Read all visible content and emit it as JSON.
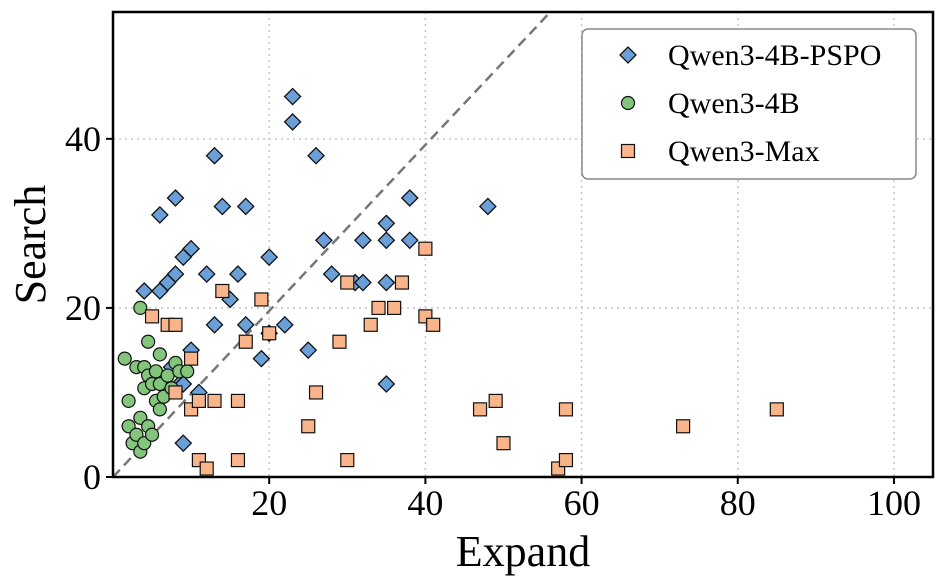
{
  "chart_data": {
    "type": "scatter",
    "xlabel": "Expand",
    "ylabel": "Search",
    "xlim": [
      0,
      105
    ],
    "ylim": [
      0,
      55
    ],
    "xticks": [
      20,
      40,
      60,
      80,
      100
    ],
    "yticks": [
      0,
      20,
      40
    ],
    "grid": true,
    "reference_line": {
      "style": "dashed",
      "from": [
        0,
        0
      ],
      "to": [
        56,
        55
      ]
    },
    "legend_position": "top-right",
    "series": [
      {
        "name": "Qwen3-4B-PSPO",
        "marker": "diamond",
        "color": "#6a9fd8",
        "points": [
          [
            4,
            22
          ],
          [
            6,
            22
          ],
          [
            6,
            31
          ],
          [
            7,
            23
          ],
          [
            7.5,
            13
          ],
          [
            8,
            24
          ],
          [
            8,
            33
          ],
          [
            8.5,
            11
          ],
          [
            9,
            26
          ],
          [
            9,
            11
          ],
          [
            9,
            4
          ],
          [
            10,
            27
          ],
          [
            10,
            15
          ],
          [
            11,
            10
          ],
          [
            12,
            24
          ],
          [
            13,
            38
          ],
          [
            13,
            18
          ],
          [
            14,
            32
          ],
          [
            15,
            21
          ],
          [
            16,
            24
          ],
          [
            17,
            32
          ],
          [
            17,
            18
          ],
          [
            19,
            14
          ],
          [
            20,
            26
          ],
          [
            20,
            17
          ],
          [
            22,
            18
          ],
          [
            23,
            45
          ],
          [
            23,
            42
          ],
          [
            25,
            15
          ],
          [
            26,
            38
          ],
          [
            27,
            28
          ],
          [
            28,
            24
          ],
          [
            31,
            23
          ],
          [
            32,
            28
          ],
          [
            32,
            23
          ],
          [
            35,
            30
          ],
          [
            35,
            28
          ],
          [
            35,
            23
          ],
          [
            35,
            11
          ],
          [
            38,
            33
          ],
          [
            38,
            28
          ],
          [
            48,
            32
          ]
        ]
      },
      {
        "name": "Qwen3-4B",
        "marker": "circle",
        "color": "#82c57b",
        "points": [
          [
            1.5,
            14
          ],
          [
            2,
            9
          ],
          [
            2,
            6
          ],
          [
            2.5,
            4
          ],
          [
            3,
            5
          ],
          [
            3,
            13
          ],
          [
            3.5,
            7
          ],
          [
            3.5,
            20
          ],
          [
            3.5,
            3
          ],
          [
            4,
            10.5
          ],
          [
            4,
            4
          ],
          [
            4,
            13
          ],
          [
            4.5,
            16
          ],
          [
            4.5,
            12
          ],
          [
            4.5,
            6
          ],
          [
            5,
            5
          ],
          [
            5,
            11
          ],
          [
            5.5,
            12.5
          ],
          [
            5.5,
            9
          ],
          [
            6,
            14.5
          ],
          [
            6,
            11
          ],
          [
            6,
            8
          ],
          [
            6.5,
            9.5
          ],
          [
            7,
            12
          ],
          [
            7.5,
            10.5
          ],
          [
            8,
            13.5
          ],
          [
            8.5,
            12.5
          ],
          [
            9.5,
            12.5
          ]
        ]
      },
      {
        "name": "Qwen3-Max",
        "marker": "square",
        "color": "#f9b589",
        "points": [
          [
            5,
            19
          ],
          [
            7,
            18
          ],
          [
            8,
            18
          ],
          [
            8,
            10
          ],
          [
            10,
            14
          ],
          [
            10,
            8
          ],
          [
            11,
            9
          ],
          [
            11,
            2
          ],
          [
            12,
            1
          ],
          [
            13,
            9
          ],
          [
            14,
            22
          ],
          [
            16,
            9
          ],
          [
            16,
            2
          ],
          [
            17,
            16
          ],
          [
            19,
            21
          ],
          [
            20,
            17
          ],
          [
            25,
            6
          ],
          [
            26,
            10
          ],
          [
            29,
            16
          ],
          [
            30,
            23
          ],
          [
            30,
            2
          ],
          [
            33,
            18
          ],
          [
            34,
            20
          ],
          [
            36,
            20
          ],
          [
            37,
            23
          ],
          [
            40,
            27
          ],
          [
            40,
            19
          ],
          [
            41,
            18
          ],
          [
            47,
            8
          ],
          [
            49,
            9
          ],
          [
            50,
            4
          ],
          [
            57,
            1
          ],
          [
            58,
            8
          ],
          [
            58,
            2
          ],
          [
            73,
            6
          ],
          [
            85,
            8
          ]
        ]
      }
    ]
  }
}
